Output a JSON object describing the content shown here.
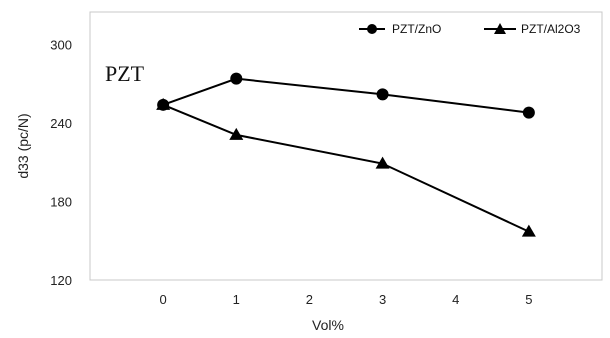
{
  "chart_data": {
    "type": "line",
    "title": "",
    "xlabel": "Vol%",
    "ylabel": "d33 (pc/N)",
    "x": [
      0,
      1,
      3,
      5
    ],
    "xticks": [
      "0",
      "1",
      "2",
      "3",
      "4",
      "5"
    ],
    "xlim": [
      -1,
      6
    ],
    "ylim": [
      120,
      325
    ],
    "yticks": [
      "120",
      "180",
      "240",
      "300"
    ],
    "grid": false,
    "legend_position": "top-right",
    "annotation": "PZT",
    "series": [
      {
        "name": "PZT/ZnO",
        "marker": "circle",
        "color": "#000000",
        "values": [
          254,
          274,
          262,
          248
        ]
      },
      {
        "name": "PZT/Al2O3",
        "marker": "triangle",
        "color": "#000000",
        "values": [
          254,
          231,
          209,
          157
        ]
      }
    ]
  }
}
